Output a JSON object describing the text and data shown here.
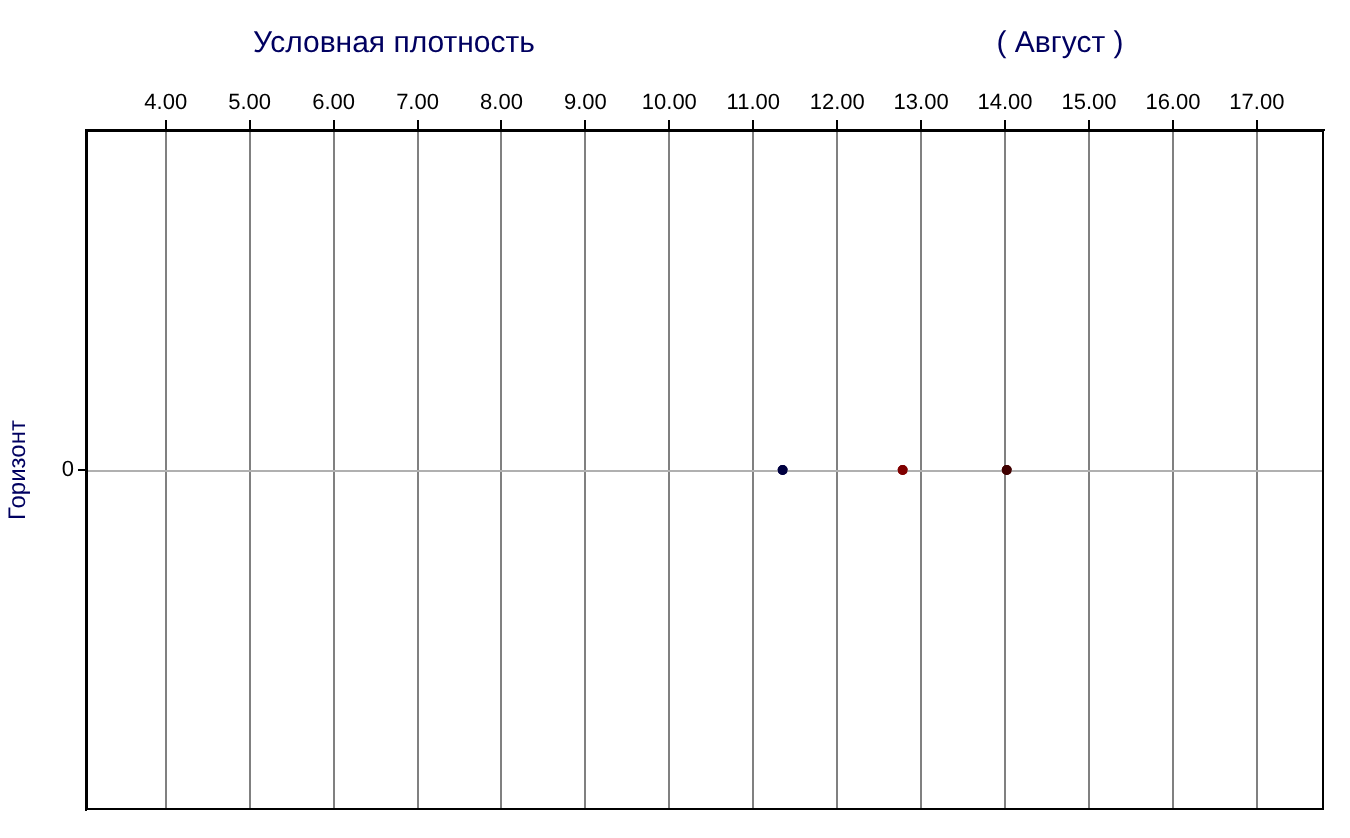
{
  "chart_data": {
    "type": "scatter",
    "orientation": "horizontal",
    "title": "Условная плотность",
    "subtitle": "( Август )",
    "ylabel": "Горизонт",
    "categories": [
      "0"
    ],
    "series": [
      {
        "color": "#000040",
        "values": [
          11.35
        ]
      },
      {
        "color": "#800000",
        "values": [
          12.78
        ]
      },
      {
        "color": "#400000",
        "values": [
          14.02
        ]
      }
    ],
    "xlim": [
      3.05,
      17.8
    ],
    "xticks": [
      {
        "value": 4,
        "label": "4.00"
      },
      {
        "value": 5,
        "label": "5.00"
      },
      {
        "value": 6,
        "label": "6.00"
      },
      {
        "value": 7,
        "label": "7.00"
      },
      {
        "value": 8,
        "label": "8.00"
      },
      {
        "value": 9,
        "label": "9.00"
      },
      {
        "value": 10,
        "label": "10.00"
      },
      {
        "value": 11,
        "label": "11.00"
      },
      {
        "value": 12,
        "label": "12.00"
      },
      {
        "value": 13,
        "label": "13.00"
      },
      {
        "value": 14,
        "label": "14.00"
      },
      {
        "value": 15,
        "label": "15.00"
      },
      {
        "value": 16,
        "label": "16.00"
      },
      {
        "value": 17,
        "label": "17.00"
      }
    ],
    "ref_lines": [
      {
        "axis": "y",
        "value": "0",
        "color": "#b0b0b0"
      }
    ],
    "grid": "x",
    "legend": false,
    "marker": "circle"
  }
}
